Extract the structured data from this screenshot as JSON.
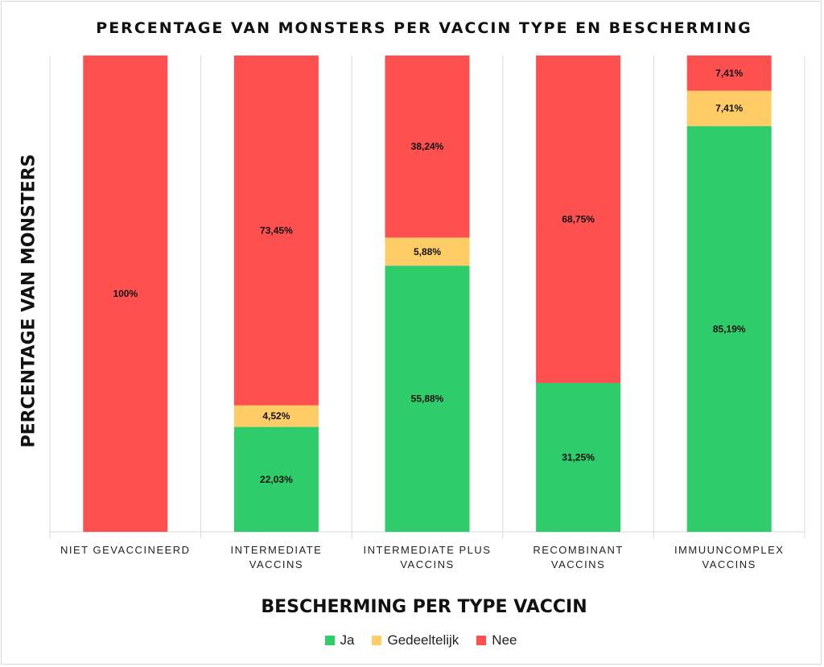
{
  "chart_data": {
    "type": "bar",
    "stacked": true,
    "title": "PERCENTAGE VAN MONSTERS PER VACCIN TYPE EN BESCHERMING",
    "xlabel": "BESCHERMING PER TYPE VACCIN",
    "ylabel": "PERCENTAGE VAN MONSTERS",
    "ylim": [
      0,
      100
    ],
    "grid": false,
    "legend_position": "bottom",
    "categories": [
      [
        "NIET GEVACCINEERD"
      ],
      [
        "INTERMEDIATE",
        "VACCINS"
      ],
      [
        "INTERMEDIATE PLUS",
        "VACCINS"
      ],
      [
        "RECOMBINANT",
        "VACCINS"
      ],
      [
        "IMMUUNCOMPLEX",
        "VACCINS"
      ]
    ],
    "series": [
      {
        "name": "Ja",
        "color": "#2ECC6A",
        "values": [
          0,
          22.03,
          55.88,
          31.25,
          85.19
        ],
        "labels": [
          "",
          "22,03%",
          "55,88%",
          "31,25%",
          "85,19%"
        ]
      },
      {
        "name": "Gedeeltelijk",
        "color": "#FFCC66",
        "values": [
          0,
          4.52,
          5.88,
          0,
          7.41
        ],
        "labels": [
          "",
          "4,52%",
          "5,88%",
          "",
          "7,41%"
        ]
      },
      {
        "name": "Nee",
        "color": "#FF5050",
        "values": [
          100,
          73.45,
          38.24,
          68.75,
          7.41
        ],
        "labels": [
          "100%",
          "73,45%",
          "38,24%",
          "68,75%",
          "7,41%"
        ]
      }
    ]
  }
}
